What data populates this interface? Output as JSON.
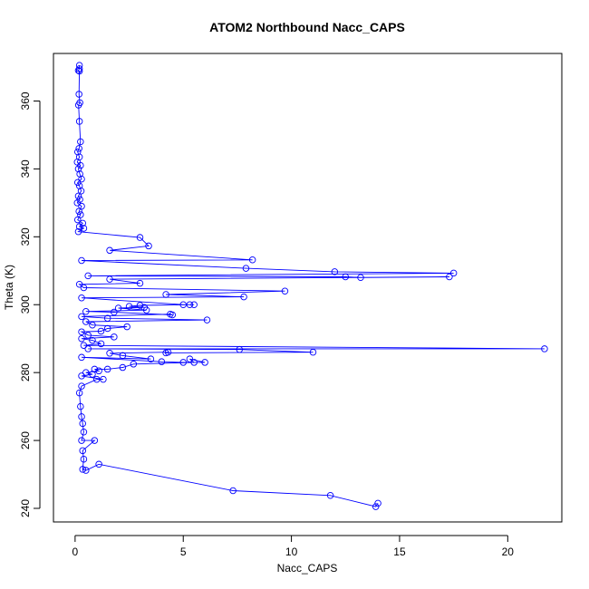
{
  "chart_data": {
    "type": "line",
    "title": "ATOM2 Northbound Nacc_CAPS",
    "xlabel": "Nacc_CAPS",
    "ylabel": "Theta (K)",
    "xlim": [
      -1,
      22.5
    ],
    "ylim": [
      236,
      374
    ],
    "xticks": [
      0,
      5,
      10,
      15,
      20
    ],
    "yticks": [
      240,
      260,
      280,
      300,
      320,
      340,
      360
    ],
    "grid": false,
    "legend": "none",
    "series": [
      {
        "color": "#0000ff",
        "marker": "open-circle",
        "points": [
          [
            0.2,
            370.5
          ],
          [
            0.2,
            369.5
          ],
          [
            0.15,
            369.0
          ],
          [
            0.2,
            368.8
          ],
          [
            0.18,
            362.0
          ],
          [
            0.22,
            359.5
          ],
          [
            0.16,
            358.8
          ],
          [
            0.2,
            354.0
          ],
          [
            0.25,
            348.0
          ],
          [
            0.18,
            346.0
          ],
          [
            0.12,
            345.0
          ],
          [
            0.2,
            343.5
          ],
          [
            0.1,
            342.0
          ],
          [
            0.25,
            341.0
          ],
          [
            0.15,
            340.0
          ],
          [
            0.22,
            338.5
          ],
          [
            0.3,
            337.0
          ],
          [
            0.12,
            336.0
          ],
          [
            0.2,
            335.0
          ],
          [
            0.28,
            333.5
          ],
          [
            0.15,
            332.0
          ],
          [
            0.22,
            331.0
          ],
          [
            0.1,
            330.0
          ],
          [
            0.3,
            329.0
          ],
          [
            0.18,
            327.5
          ],
          [
            0.25,
            326.5
          ],
          [
            0.12,
            325.0
          ],
          [
            0.35,
            324.0
          ],
          [
            0.2,
            323.0
          ],
          [
            0.4,
            322.5
          ],
          [
            0.15,
            321.5
          ],
          [
            3.0,
            319.8
          ],
          [
            3.4,
            317.3
          ],
          [
            1.6,
            316.0
          ],
          [
            8.2,
            313.2
          ],
          [
            0.3,
            313.0
          ],
          [
            7.9,
            310.7
          ],
          [
            12.0,
            309.7
          ],
          [
            17.5,
            309.3
          ],
          [
            0.6,
            308.5
          ],
          [
            12.5,
            308.2
          ],
          [
            13.2,
            308.0
          ],
          [
            17.3,
            308.2
          ],
          [
            1.6,
            307.5
          ],
          [
            3.0,
            306.3
          ],
          [
            0.2,
            306.0
          ],
          [
            0.4,
            305.0
          ],
          [
            9.7,
            304.0
          ],
          [
            4.2,
            303.0
          ],
          [
            7.8,
            302.3
          ],
          [
            0.3,
            302.0
          ],
          [
            5.0,
            300.0
          ],
          [
            5.3,
            300.0
          ],
          [
            5.5,
            300.0
          ],
          [
            3.0,
            299.8
          ],
          [
            2.5,
            299.5
          ],
          [
            3.2,
            299.2
          ],
          [
            2.0,
            299.0
          ],
          [
            3.3,
            298.4
          ],
          [
            0.5,
            298.0
          ],
          [
            1.8,
            297.8
          ],
          [
            4.5,
            297.0
          ],
          [
            4.4,
            297.2
          ],
          [
            0.3,
            296.5
          ],
          [
            1.5,
            296.0
          ],
          [
            6.1,
            295.5
          ],
          [
            0.5,
            295.0
          ],
          [
            0.8,
            294.0
          ],
          [
            2.4,
            293.5
          ],
          [
            1.5,
            293.0
          ],
          [
            1.2,
            292.2
          ],
          [
            0.3,
            292.0
          ],
          [
            0.6,
            291.0
          ],
          [
            1.8,
            290.5
          ],
          [
            0.3,
            290.0
          ],
          [
            0.8,
            289.5
          ],
          [
            1.2,
            288.5
          ],
          [
            0.4,
            288.0
          ],
          [
            21.7,
            287.0
          ],
          [
            0.6,
            287.0
          ],
          [
            7.6,
            286.8
          ],
          [
            11.0,
            286.0
          ],
          [
            4.2,
            285.8
          ],
          [
            4.3,
            286.0
          ],
          [
            1.6,
            285.7
          ],
          [
            2.2,
            285.0
          ],
          [
            3.5,
            284.0
          ],
          [
            0.3,
            284.5
          ],
          [
            4.0,
            283.2
          ],
          [
            5.0,
            283.0
          ],
          [
            6.0,
            283.0
          ],
          [
            5.3,
            284.0
          ],
          [
            5.5,
            283.0
          ],
          [
            2.7,
            282.5
          ],
          [
            2.2,
            281.5
          ],
          [
            1.5,
            281.0
          ],
          [
            0.9,
            281.0
          ],
          [
            1.1,
            280.5
          ],
          [
            0.5,
            280.0
          ],
          [
            0.8,
            279.5
          ],
          [
            0.3,
            279.0
          ],
          [
            1.3,
            278.0
          ],
          [
            1.0,
            278.0
          ],
          [
            0.3,
            276.0
          ],
          [
            0.2,
            274.0
          ],
          [
            0.25,
            270.0
          ],
          [
            0.3,
            267.0
          ],
          [
            0.35,
            265.0
          ],
          [
            0.4,
            262.5
          ],
          [
            0.3,
            260.0
          ],
          [
            0.9,
            260.0
          ],
          [
            0.35,
            257.0
          ],
          [
            0.4,
            254.5
          ],
          [
            0.35,
            251.5
          ],
          [
            0.5,
            251.2
          ],
          [
            1.1,
            253.0
          ],
          [
            7.3,
            245.2
          ],
          [
            11.8,
            243.8
          ],
          [
            13.9,
            240.5
          ],
          [
            14.0,
            241.5
          ]
        ]
      }
    ]
  }
}
